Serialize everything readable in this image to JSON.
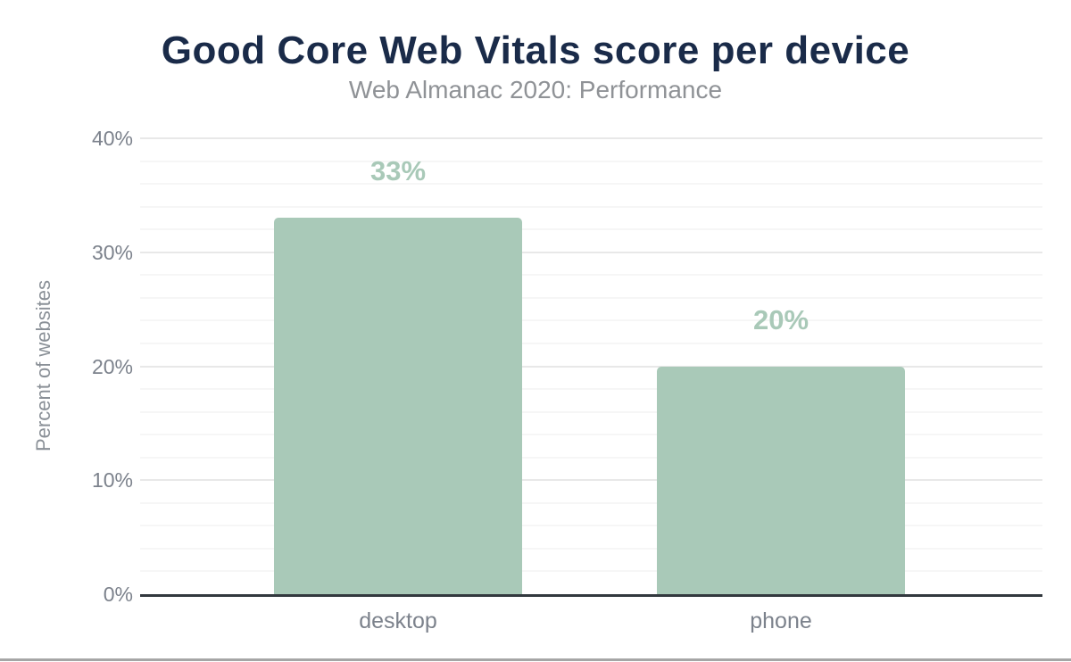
{
  "chart_data": {
    "type": "bar",
    "title": "Good Core Web Vitals score per device",
    "subtitle": "Web Almanac 2020: Performance",
    "ylabel": "Percent of websites",
    "xlabel": "",
    "categories": [
      "desktop",
      "phone"
    ],
    "values": [
      33,
      20
    ],
    "value_labels": [
      "33%",
      "20%"
    ],
    "ylim": [
      0,
      40
    ],
    "yticks": [
      {
        "label": "0%",
        "value": 0
      },
      {
        "label": "10%",
        "value": 10
      },
      {
        "label": "20%",
        "value": 20
      },
      {
        "label": "30%",
        "value": 30
      },
      {
        "label": "40%",
        "value": 40
      }
    ],
    "grid": true,
    "grid_minor_step": 2,
    "grid_major_step": 10,
    "legend": false
  },
  "colors": {
    "title": "#1a2b49",
    "subtitle": "#8f9296",
    "axis_text": "#7c828c",
    "y_axis_title_text": "#8a9097",
    "bar_fill": "#a9c9b8",
    "value_label": "#a9c9b8",
    "grid_minor": "#f6f6f6",
    "grid_major": "#e8e8e8",
    "axis_line": "#32383e",
    "bottom_border": "#a6a6a6",
    "background": "#ffffff"
  }
}
